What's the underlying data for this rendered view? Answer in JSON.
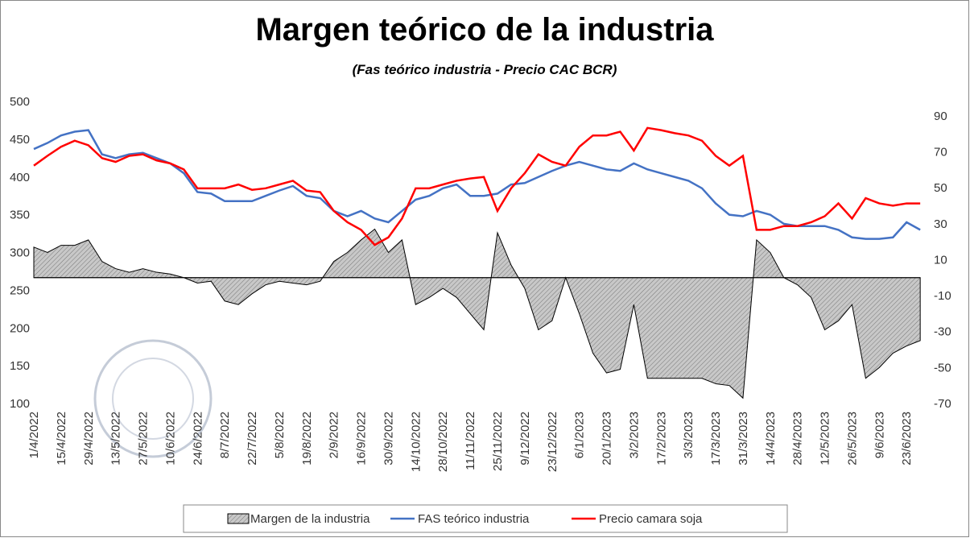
{
  "chart_data": {
    "type": "line",
    "title": "Margen teórico de la industria",
    "subtitle": "(Fas teórico industria - Precio CAC BCR)",
    "x": [
      "1/4/2022",
      "8/4/2022",
      "15/4/2022",
      "22/4/2022",
      "29/4/2022",
      "6/5/2022",
      "13/5/2022",
      "20/5/2022",
      "27/5/2022",
      "3/6/2022",
      "10/6/2022",
      "17/6/2022",
      "24/6/2022",
      "1/7/2022",
      "8/7/2022",
      "15/7/2022",
      "22/7/2022",
      "29/7/2022",
      "5/8/2022",
      "12/8/2022",
      "19/8/2022",
      "26/8/2022",
      "2/9/2022",
      "9/9/2022",
      "16/9/2022",
      "23/9/2022",
      "30/9/2022",
      "7/10/2022",
      "14/10/2022",
      "21/10/2022",
      "28/10/2022",
      "4/11/2022",
      "11/11/2022",
      "18/11/2022",
      "25/11/2022",
      "2/12/2022",
      "9/12/2022",
      "16/12/2022",
      "23/12/2022",
      "30/12/2022",
      "6/1/2023",
      "13/1/2023",
      "20/1/2023",
      "27/1/2023",
      "3/2/2023",
      "10/2/2023",
      "17/2/2023",
      "24/2/2023",
      "3/3/2023",
      "10/3/2023",
      "17/3/2023",
      "24/3/2023",
      "31/3/2023",
      "7/4/2023",
      "14/4/2023",
      "21/4/2023",
      "28/4/2023",
      "5/5/2023",
      "12/5/2023",
      "19/5/2023",
      "26/5/2023",
      "2/6/2023",
      "9/6/2023",
      "16/6/2023",
      "23/6/2023",
      "30/6/2023"
    ],
    "series": [
      {
        "name": "Margen de la industria",
        "type": "area",
        "axis": "y2",
        "color": "#bfbfbf",
        "values": [
          17,
          14,
          18,
          18,
          21,
          9,
          5,
          3,
          5,
          3,
          2,
          0,
          -3,
          -2,
          -13,
          -15,
          -9,
          -4,
          -2,
          -3,
          -4,
          -2,
          9,
          14,
          21,
          27,
          14,
          21,
          -15,
          -11,
          -6,
          -11,
          -20,
          -29,
          25,
          7,
          -6,
          -29,
          -24,
          0,
          -20,
          -42,
          -53,
          -51,
          -15,
          -56,
          -56,
          -56,
          -56,
          -56,
          -59,
          -60,
          -67,
          21,
          14,
          0,
          -4,
          -11,
          -29,
          -24,
          -15,
          -56,
          -50,
          -42,
          -38,
          -35
        ]
      },
      {
        "name": "FAS teórico industria",
        "type": "line",
        "color": "#4472c4",
        "values": [
          437,
          445,
          455,
          460,
          462,
          430,
          425,
          430,
          432,
          425,
          418,
          405,
          380,
          378,
          368,
          368,
          368,
          375,
          382,
          388,
          375,
          372,
          355,
          348,
          355,
          345,
          340,
          355,
          370,
          375,
          385,
          390,
          375,
          375,
          378,
          390,
          392,
          400,
          408,
          415,
          420,
          415,
          410,
          408,
          418,
          410,
          405,
          400,
          395,
          385,
          365,
          350,
          348,
          355,
          350,
          338,
          335,
          335,
          335,
          330,
          320,
          318,
          318,
          320,
          340,
          330
        ]
      },
      {
        "name": "Precio camara soja",
        "type": "line",
        "color": "#ff0000",
        "values": [
          415,
          428,
          440,
          448,
          442,
          425,
          420,
          428,
          430,
          422,
          418,
          410,
          385,
          385,
          385,
          390,
          383,
          385,
          390,
          395,
          382,
          380,
          355,
          340,
          330,
          310,
          320,
          345,
          385,
          385,
          390,
          395,
          398,
          400,
          355,
          385,
          405,
          430,
          420,
          415,
          440,
          455,
          455,
          460,
          435,
          465,
          462,
          458,
          455,
          448,
          428,
          415,
          428,
          330,
          330,
          335,
          335,
          340,
          348,
          365,
          345,
          372,
          365,
          362,
          365,
          365
        ]
      }
    ],
    "xlim": [
      "1/4/2022",
      "2/7/2023"
    ],
    "xticks": [
      "1/4/2022",
      "15/4/2022",
      "29/4/2022",
      "13/5/2022",
      "27/5/2022",
      "10/6/2022",
      "24/6/2022",
      "8/7/2022",
      "22/7/2022",
      "5/8/2022",
      "19/8/2022",
      "2/9/2022",
      "16/9/2022",
      "30/9/2022",
      "14/10/2022",
      "28/10/2022",
      "11/11/2022",
      "25/11/2022",
      "9/12/2022",
      "23/12/2022",
      "6/1/2023",
      "20/1/2023",
      "3/2/2023",
      "17/2/2023",
      "3/3/2023",
      "17/3/2023",
      "31/3/2023",
      "14/4/2023",
      "28/4/2023",
      "12/5/2023",
      "26/5/2023",
      "9/6/2023",
      "23/6/2023"
    ],
    "ylim": [
      100,
      500
    ],
    "yticks": [
      100,
      150,
      200,
      250,
      300,
      350,
      400,
      450,
      500
    ],
    "y2lim": [
      -70,
      98
    ],
    "y2ticks": [
      -70,
      -50,
      -30,
      -10,
      10,
      30,
      50,
      70,
      90
    ],
    "legend": "bottom"
  }
}
